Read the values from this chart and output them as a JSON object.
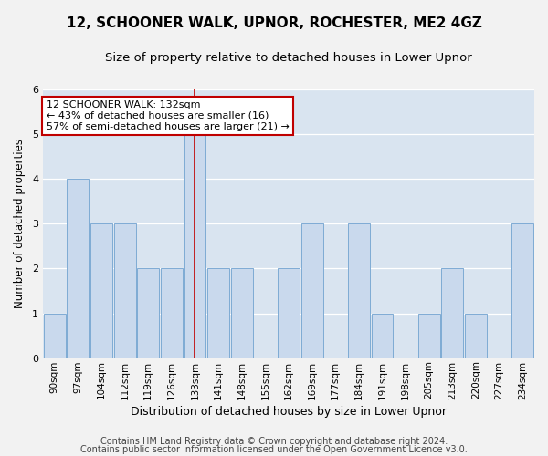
{
  "title1": "12, SCHOONER WALK, UPNOR, ROCHESTER, ME2 4GZ",
  "title2": "Size of property relative to detached houses in Lower Upnor",
  "xlabel": "Distribution of detached houses by size in Lower Upnor",
  "ylabel": "Number of detached properties",
  "categories": [
    "90sqm",
    "97sqm",
    "104sqm",
    "112sqm",
    "119sqm",
    "126sqm",
    "133sqm",
    "141sqm",
    "148sqm",
    "155sqm",
    "162sqm",
    "169sqm",
    "177sqm",
    "184sqm",
    "191sqm",
    "198sqm",
    "205sqm",
    "213sqm",
    "220sqm",
    "227sqm",
    "234sqm"
  ],
  "values": [
    1,
    4,
    3,
    3,
    2,
    2,
    5,
    2,
    2,
    0,
    2,
    3,
    0,
    3,
    1,
    0,
    1,
    2,
    1,
    0,
    3
  ],
  "bar_color": "#c9d9ed",
  "bar_edge_color": "#7eabd4",
  "highlight_index": 6,
  "highlight_line_color": "#c00000",
  "ylim": [
    0,
    6
  ],
  "yticks": [
    0,
    1,
    2,
    3,
    4,
    5,
    6
  ],
  "annotation_line1": "12 SCHOONER WALK: 132sqm",
  "annotation_line2": "← 43% of detached houses are smaller (16)",
  "annotation_line3": "57% of semi-detached houses are larger (21) →",
  "annotation_box_color": "#ffffff",
  "annotation_border_color": "#c00000",
  "footer1": "Contains HM Land Registry data © Crown copyright and database right 2024.",
  "footer2": "Contains public sector information licensed under the Open Government Licence v3.0.",
  "grid_color": "#ffffff",
  "bg_color": "#d9e4f0",
  "fig_bg_color": "#f2f2f2",
  "title1_fontsize": 11,
  "title2_fontsize": 9.5,
  "tick_fontsize": 7.5,
  "xlabel_fontsize": 9,
  "ylabel_fontsize": 8.5,
  "footer_fontsize": 7,
  "annotation_fontsize": 8
}
